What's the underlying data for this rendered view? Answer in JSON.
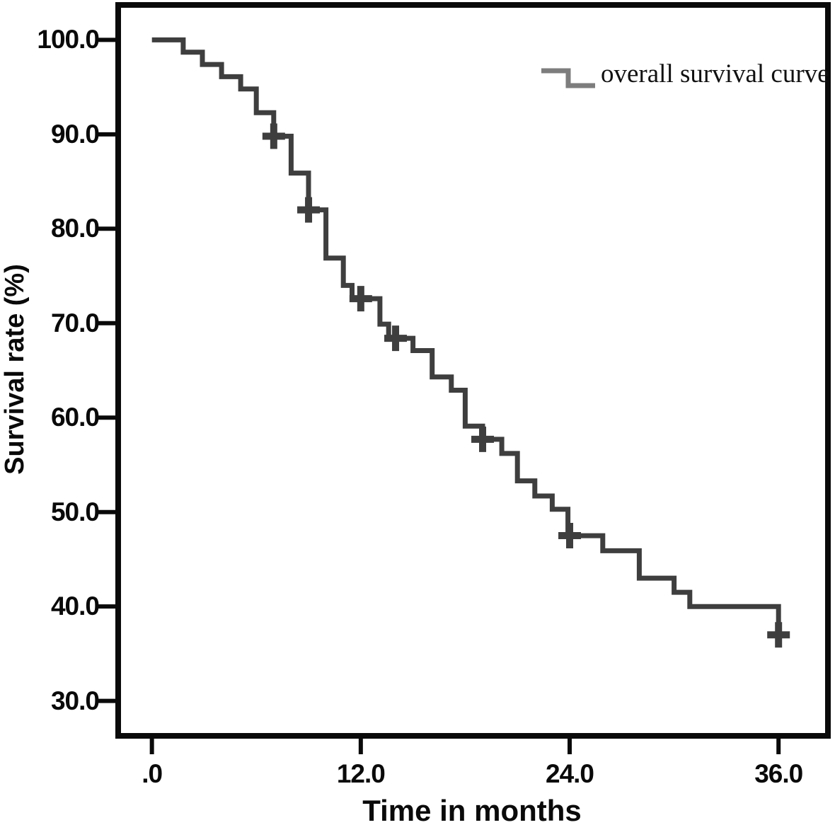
{
  "figure": {
    "background": "#ffffff",
    "frame_color": "#0a0a0a",
    "text_color": "#0a0a0a"
  },
  "chart_data": {
    "type": "line",
    "subtype": "kaplan-meier-step",
    "title": "",
    "xlabel": "Time in months",
    "ylabel": "Survival rate (%)",
    "xlim": [
      -2.1,
      39.0
    ],
    "ylim": [
      26,
      104
    ],
    "grid": false,
    "legend_position": "top-right-inside",
    "x_ticks": [
      {
        "v": 0,
        "label": ".0"
      },
      {
        "v": 12,
        "label": "12.0"
      },
      {
        "v": 24,
        "label": "24.0"
      },
      {
        "v": 36,
        "label": "36.0"
      }
    ],
    "y_ticks": [
      {
        "v": 100,
        "label": "100.0"
      },
      {
        "v": 90,
        "label": "90.0"
      },
      {
        "v": 80,
        "label": "80.0"
      },
      {
        "v": 70,
        "label": "70.0"
      },
      {
        "v": 60,
        "label": "60.0"
      },
      {
        "v": 50,
        "label": "50.0"
      },
      {
        "v": 40,
        "label": "40.0"
      },
      {
        "v": 30,
        "label": "30.0"
      }
    ],
    "legend": [
      {
        "label": "overall survival curve",
        "symbol": "step-line",
        "color": "#7d7d7d"
      }
    ],
    "series": [
      {
        "name": "overall survival curve",
        "color": "#3e3e3e",
        "line_width": 7,
        "steps": [
          [
            0,
            100.0
          ],
          [
            1.8,
            98.7
          ],
          [
            2.9,
            97.4
          ],
          [
            4.0,
            96.1
          ],
          [
            5.1,
            94.8
          ],
          [
            6.0,
            92.3
          ],
          [
            7.0,
            89.8
          ],
          [
            8.0,
            85.9
          ],
          [
            9.0,
            82.0
          ],
          [
            10.0,
            76.9
          ],
          [
            11.0,
            74.0
          ],
          [
            11.5,
            72.6
          ],
          [
            13.1,
            69.9
          ],
          [
            13.6,
            68.4
          ],
          [
            15.0,
            67.1
          ],
          [
            16.1,
            64.3
          ],
          [
            17.2,
            62.9
          ],
          [
            18.0,
            59.1
          ],
          [
            19.0,
            57.7
          ],
          [
            20.1,
            56.2
          ],
          [
            21.0,
            53.3
          ],
          [
            22.0,
            51.7
          ],
          [
            23.0,
            50.3
          ],
          [
            23.9,
            47.5
          ],
          [
            25.9,
            45.9
          ],
          [
            28.0,
            43.0
          ],
          [
            30.0,
            41.5
          ],
          [
            30.9,
            40.0
          ],
          [
            36.0,
            37.0
          ]
        ],
        "censor_marks": [
          [
            7.0,
            89.8
          ],
          [
            9.0,
            82.0
          ],
          [
            12.0,
            72.6
          ],
          [
            14.0,
            68.4
          ],
          [
            19.0,
            57.7
          ],
          [
            24.0,
            47.5
          ],
          [
            36.0,
            37.0
          ]
        ]
      }
    ]
  }
}
